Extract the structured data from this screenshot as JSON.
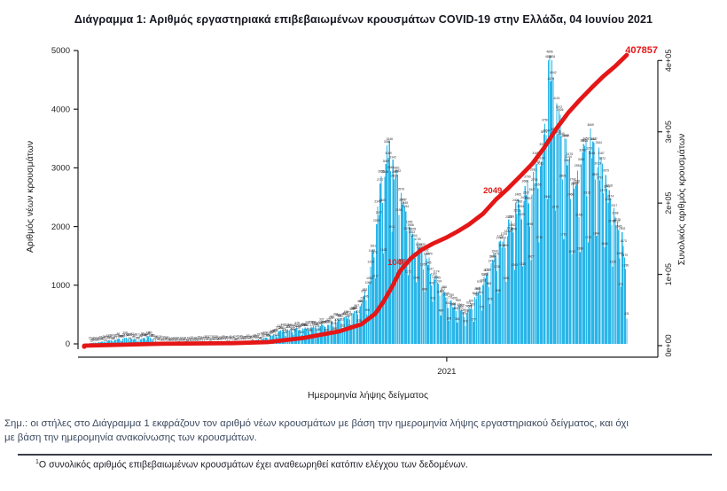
{
  "title": "Διάγραμμα 1: Αριθμός εργαστηριακά επιβεβαιωμένων κρουσμάτων COVID-19 στην Ελλάδα, 04 Ιουνίου 2021",
  "note": {
    "line1": "Σημ.: οι στήλες στο Διάγραμμα 1 εκφράζουν τον αριθμό νέων κρουσμάτων με βάση την ημερομηνία λήψης εργαστηριακού δείγματος, και όχι",
    "line2": "με βάση την ημερομηνία ανακοίνωσης των κρουσμάτων."
  },
  "footnote": {
    "marker": "1",
    "text": "Ο συνολικός αριθμός επιβεβαιωμένων κρουσμάτων έχει αναθεωρηθεί κατόπιν ελέγχου των δεδομένων."
  },
  "colors": {
    "bar": "#29b5e8",
    "line": "#e51616",
    "axis": "#1f1f1f",
    "tiny_label": "#2a2a30"
  },
  "chart_data": {
    "type": "bar",
    "title": "",
    "xlabel": "Ημερομηνία λήψης δείγματος",
    "x_tick_labels": [
      "2021"
    ],
    "date_range": [
      "2020-02-26",
      "2021-06-04"
    ],
    "y_left": {
      "label": "Αριθμός νέων κρουσμάτων",
      "ticks": [
        0,
        1000,
        2000,
        3000,
        4000,
        5000
      ],
      "range": [
        0,
        5000
      ]
    },
    "y_right": {
      "label": "Συνολικός αριθμός κρουσμάτων",
      "tick_labels": [
        "0e+00",
        "1e+05",
        "2e+05",
        "3e+05",
        "4e+05"
      ],
      "tick_values": [
        0,
        100000,
        200000,
        300000,
        400000
      ],
      "range": [
        0,
        420000
      ]
    },
    "grid": false,
    "legend": "none",
    "series": [
      {
        "name": "daily-new-cases-bars",
        "type": "bar",
        "note": "daily bars estimated from envelope; values in cases/day by sampling date",
        "envelope": [
          [
            "2020-02-26",
            5
          ],
          [
            "2020-03-10",
            30
          ],
          [
            "2020-03-22",
            70
          ],
          [
            "2020-04-01",
            100
          ],
          [
            "2020-04-12",
            70
          ],
          [
            "2020-04-21",
            130
          ],
          [
            "2020-04-28",
            40
          ],
          [
            "2020-05-10",
            22
          ],
          [
            "2020-05-25",
            18
          ],
          [
            "2020-06-08",
            35
          ],
          [
            "2020-06-22",
            40
          ],
          [
            "2020-07-06",
            45
          ],
          [
            "2020-07-20",
            55
          ],
          [
            "2020-08-01",
            110
          ],
          [
            "2020-08-12",
            230
          ],
          [
            "2020-08-25",
            260
          ],
          [
            "2020-09-08",
            290
          ],
          [
            "2020-09-22",
            340
          ],
          [
            "2020-10-01",
            420
          ],
          [
            "2020-10-12",
            500
          ],
          [
            "2020-10-20",
            680
          ],
          [
            "2020-10-27",
            1100
          ],
          [
            "2020-11-03",
            2300
          ],
          [
            "2020-11-08",
            2900
          ],
          [
            "2020-11-12",
            3500
          ],
          [
            "2020-11-17",
            3100
          ],
          [
            "2020-11-24",
            2500
          ],
          [
            "2020-12-01",
            2050
          ],
          [
            "2020-12-08",
            1700
          ],
          [
            "2020-12-15",
            1450
          ],
          [
            "2020-12-22",
            1150
          ],
          [
            "2020-12-29",
            850
          ],
          [
            "2021-01-05",
            700
          ],
          [
            "2021-01-12",
            600
          ],
          [
            "2021-01-18",
            520
          ],
          [
            "2021-01-25",
            750
          ],
          [
            "2021-02-01",
            1050
          ],
          [
            "2021-02-08",
            1350
          ],
          [
            "2021-02-15",
            1650
          ],
          [
            "2021-02-22",
            2000
          ],
          [
            "2021-03-01",
            2250
          ],
          [
            "2021-03-08",
            2500
          ],
          [
            "2021-03-16",
            2800
          ],
          [
            "2021-03-23",
            3300
          ],
          [
            "2021-03-28",
            4500
          ],
          [
            "2021-03-31",
            4850
          ],
          [
            "2021-04-04",
            4200
          ],
          [
            "2021-04-08",
            3700
          ],
          [
            "2021-04-13",
            3300
          ],
          [
            "2021-04-19",
            2700
          ],
          [
            "2021-04-24",
            2900
          ],
          [
            "2021-04-30",
            3300
          ],
          [
            "2021-05-04",
            3550
          ],
          [
            "2021-05-10",
            3200
          ],
          [
            "2021-05-16",
            2850
          ],
          [
            "2021-05-22",
            2400
          ],
          [
            "2021-05-28",
            2000
          ],
          [
            "2021-06-01",
            1700
          ],
          [
            "2021-06-03",
            1200
          ],
          [
            "2021-06-04",
            450
          ]
        ]
      },
      {
        "name": "cumulative-cases-line",
        "type": "line",
        "points": [
          [
            "2020-02-26",
            3
          ],
          [
            "2020-05-01",
            2600
          ],
          [
            "2020-07-01",
            3500
          ],
          [
            "2020-08-01",
            5000
          ],
          [
            "2020-09-01",
            11000
          ],
          [
            "2020-10-01",
            20000
          ],
          [
            "2020-10-20",
            30000
          ],
          [
            "2020-11-01",
            45000
          ],
          [
            "2020-11-08",
            62000
          ],
          [
            "2020-11-15",
            82000
          ],
          [
            "2020-11-22",
            104600
          ],
          [
            "2020-12-01",
            122000
          ],
          [
            "2020-12-10",
            134000
          ],
          [
            "2020-12-20",
            143000
          ],
          [
            "2021-01-01",
            152000
          ],
          [
            "2021-01-10",
            160000
          ],
          [
            "2021-01-20",
            170000
          ],
          [
            "2021-02-01",
            185000
          ],
          [
            "2021-02-12",
            204900
          ],
          [
            "2021-02-22",
            220000
          ],
          [
            "2021-03-05",
            238000
          ],
          [
            "2021-03-15",
            255000
          ],
          [
            "2021-03-25",
            277000
          ],
          [
            "2021-04-05",
            305000
          ],
          [
            "2021-04-15",
            327000
          ],
          [
            "2021-04-25",
            345000
          ],
          [
            "2021-05-05",
            362000
          ],
          [
            "2021-05-15",
            378000
          ],
          [
            "2021-05-25",
            392000
          ],
          [
            "2021-06-04",
            407857
          ]
        ]
      }
    ],
    "annotations": [
      {
        "text": "1046",
        "suffix_hidden_by_line": true,
        "date": "2020-11-22",
        "series": "cumulative",
        "color": "#e51616"
      },
      {
        "text": "2049",
        "suffix_hidden_by_line": true,
        "date": "2021-02-12",
        "series": "cumulative",
        "color": "#e51616"
      },
      {
        "text": "407857",
        "date": "2021-06-04",
        "series": "cumulative",
        "color": "#e51616"
      }
    ]
  }
}
